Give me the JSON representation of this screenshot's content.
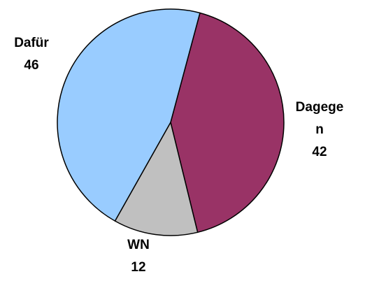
{
  "chart_data": {
    "type": "pie",
    "categories": [
      "Dagegen",
      "WN",
      "Dafür"
    ],
    "values": [
      42,
      12,
      46
    ],
    "colors": [
      "#993366",
      "#c0c0c0",
      "#99ccff"
    ],
    "start_angle": 15
  }
}
